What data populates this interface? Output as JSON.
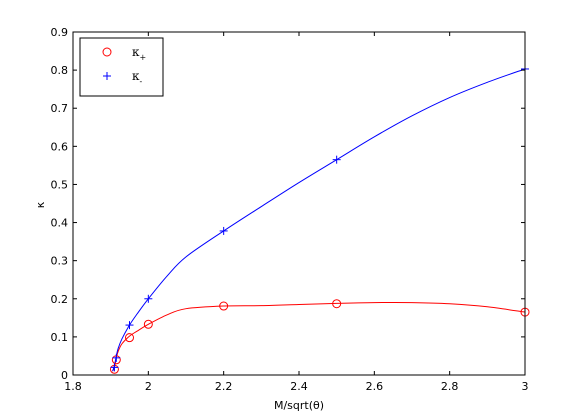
{
  "chart_data": {
    "type": "line",
    "xlabel": "M/sqrt(θ)",
    "ylabel": "κ",
    "xlim": [
      1.8,
      3.0
    ],
    "ylim": [
      0,
      0.9
    ],
    "xticks": [
      1.8,
      2.0,
      2.2,
      2.4,
      2.6,
      2.8,
      3.0
    ],
    "yticks": [
      0,
      0.1,
      0.2,
      0.3,
      0.4,
      0.5,
      0.6,
      0.7,
      0.8,
      0.9
    ],
    "xtick_labels": [
      "1.8",
      "2",
      "2.2",
      "2.4",
      "2.6",
      "2.8",
      "3"
    ],
    "ytick_labels": [
      "0",
      "0.1",
      "0.2",
      "0.3",
      "0.4",
      "0.5",
      "0.6",
      "0.7",
      "0.8",
      "0.9"
    ],
    "grid": false,
    "legend_position": "top-left",
    "series": [
      {
        "name": "κ+",
        "legend_base": "κ",
        "legend_sub": "+",
        "color": "#ff0000",
        "marker": "circle",
        "markers": {
          "x": [
            1.91,
            1.915,
            1.95,
            2.0,
            2.2,
            2.5,
            3.0
          ],
          "y": [
            0.015,
            0.04,
            0.098,
            0.133,
            0.181,
            0.187,
            0.165
          ]
        },
        "curve": {
          "x": [
            1.905,
            1.91,
            1.915,
            1.92,
            1.93,
            1.95,
            1.97,
            2.0,
            2.05,
            2.1,
            2.2,
            2.3,
            2.4,
            2.5,
            2.6,
            2.7,
            2.8,
            2.9,
            3.0
          ],
          "y": [
            0.01,
            0.02,
            0.045,
            0.062,
            0.082,
            0.102,
            0.115,
            0.133,
            0.158,
            0.174,
            0.181,
            0.182,
            0.185,
            0.188,
            0.19,
            0.19,
            0.187,
            0.179,
            0.165
          ]
        }
      },
      {
        "name": "κ-",
        "legend_base": "κ",
        "legend_sub": "-",
        "color": "#0000ff",
        "marker": "plus",
        "markers": {
          "x": [
            1.91,
            1.915,
            1.95,
            2.0,
            2.2,
            2.5,
            3.0
          ],
          "y": [
            0.02,
            0.045,
            0.131,
            0.2,
            0.378,
            0.565,
            0.803
          ]
        },
        "curve": {
          "x": [
            1.905,
            1.91,
            1.915,
            1.92,
            1.93,
            1.95,
            1.97,
            2.0,
            2.05,
            2.1,
            2.2,
            2.3,
            2.4,
            2.5,
            2.6,
            2.7,
            2.8,
            2.9,
            3.0
          ],
          "y": [
            0.01,
            0.025,
            0.05,
            0.07,
            0.095,
            0.131,
            0.16,
            0.2,
            0.26,
            0.31,
            0.378,
            0.442,
            0.505,
            0.565,
            0.625,
            0.68,
            0.728,
            0.768,
            0.803
          ]
        }
      }
    ]
  }
}
